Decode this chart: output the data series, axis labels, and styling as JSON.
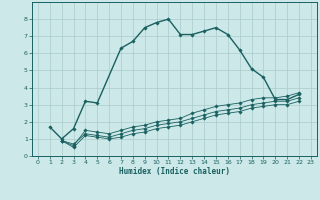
{
  "xlabel": "Humidex (Indice chaleur)",
  "bg_color": "#cce8e8",
  "grid_color": "#aacccc",
  "line_color": "#1a6060",
  "xlim": [
    -0.5,
    23.5
  ],
  "ylim": [
    0,
    9
  ],
  "xticks": [
    0,
    1,
    2,
    3,
    4,
    5,
    6,
    7,
    8,
    9,
    10,
    11,
    12,
    13,
    14,
    15,
    16,
    17,
    18,
    19,
    20,
    21,
    22,
    23
  ],
  "yticks": [
    0,
    1,
    2,
    3,
    4,
    5,
    6,
    7,
    8
  ],
  "series": [
    {
      "x": [
        1,
        2,
        3,
        4,
        5,
        7,
        8,
        9,
        10,
        11,
        12,
        13,
        14,
        15,
        16,
        17,
        18,
        19,
        20,
        21,
        22
      ],
      "y": [
        1.7,
        1.0,
        1.6,
        3.2,
        3.1,
        6.3,
        6.7,
        7.5,
        7.8,
        8.0,
        7.1,
        7.1,
        7.3,
        7.5,
        7.1,
        6.2,
        5.1,
        4.6,
        3.3,
        3.3,
        3.6
      ]
    },
    {
      "x": [
        2,
        3,
        4,
        5,
        6,
        7,
        8,
        9,
        10,
        11,
        12,
        13,
        14,
        15,
        16,
        17,
        18,
        19,
        20,
        21,
        22
      ],
      "y": [
        0.9,
        0.6,
        1.5,
        1.4,
        1.3,
        1.5,
        1.7,
        1.8,
        2.0,
        2.1,
        2.2,
        2.5,
        2.7,
        2.9,
        3.0,
        3.1,
        3.3,
        3.4,
        3.4,
        3.5,
        3.7
      ]
    },
    {
      "x": [
        2,
        3,
        4,
        5,
        6,
        7,
        8,
        9,
        10,
        11,
        12,
        13,
        14,
        15,
        16,
        17,
        18,
        19,
        20,
        21,
        22
      ],
      "y": [
        0.9,
        0.7,
        1.3,
        1.2,
        1.1,
        1.3,
        1.5,
        1.6,
        1.8,
        1.9,
        2.0,
        2.2,
        2.4,
        2.6,
        2.7,
        2.8,
        3.0,
        3.1,
        3.2,
        3.2,
        3.4
      ]
    },
    {
      "x": [
        2,
        3,
        4,
        5,
        6,
        7,
        8,
        9,
        10,
        11,
        12,
        13,
        14,
        15,
        16,
        17,
        18,
        19,
        20,
        21,
        22
      ],
      "y": [
        0.9,
        0.5,
        1.2,
        1.1,
        1.0,
        1.1,
        1.3,
        1.4,
        1.6,
        1.7,
        1.8,
        2.0,
        2.2,
        2.4,
        2.5,
        2.6,
        2.8,
        2.9,
        3.0,
        3.0,
        3.2
      ]
    }
  ]
}
